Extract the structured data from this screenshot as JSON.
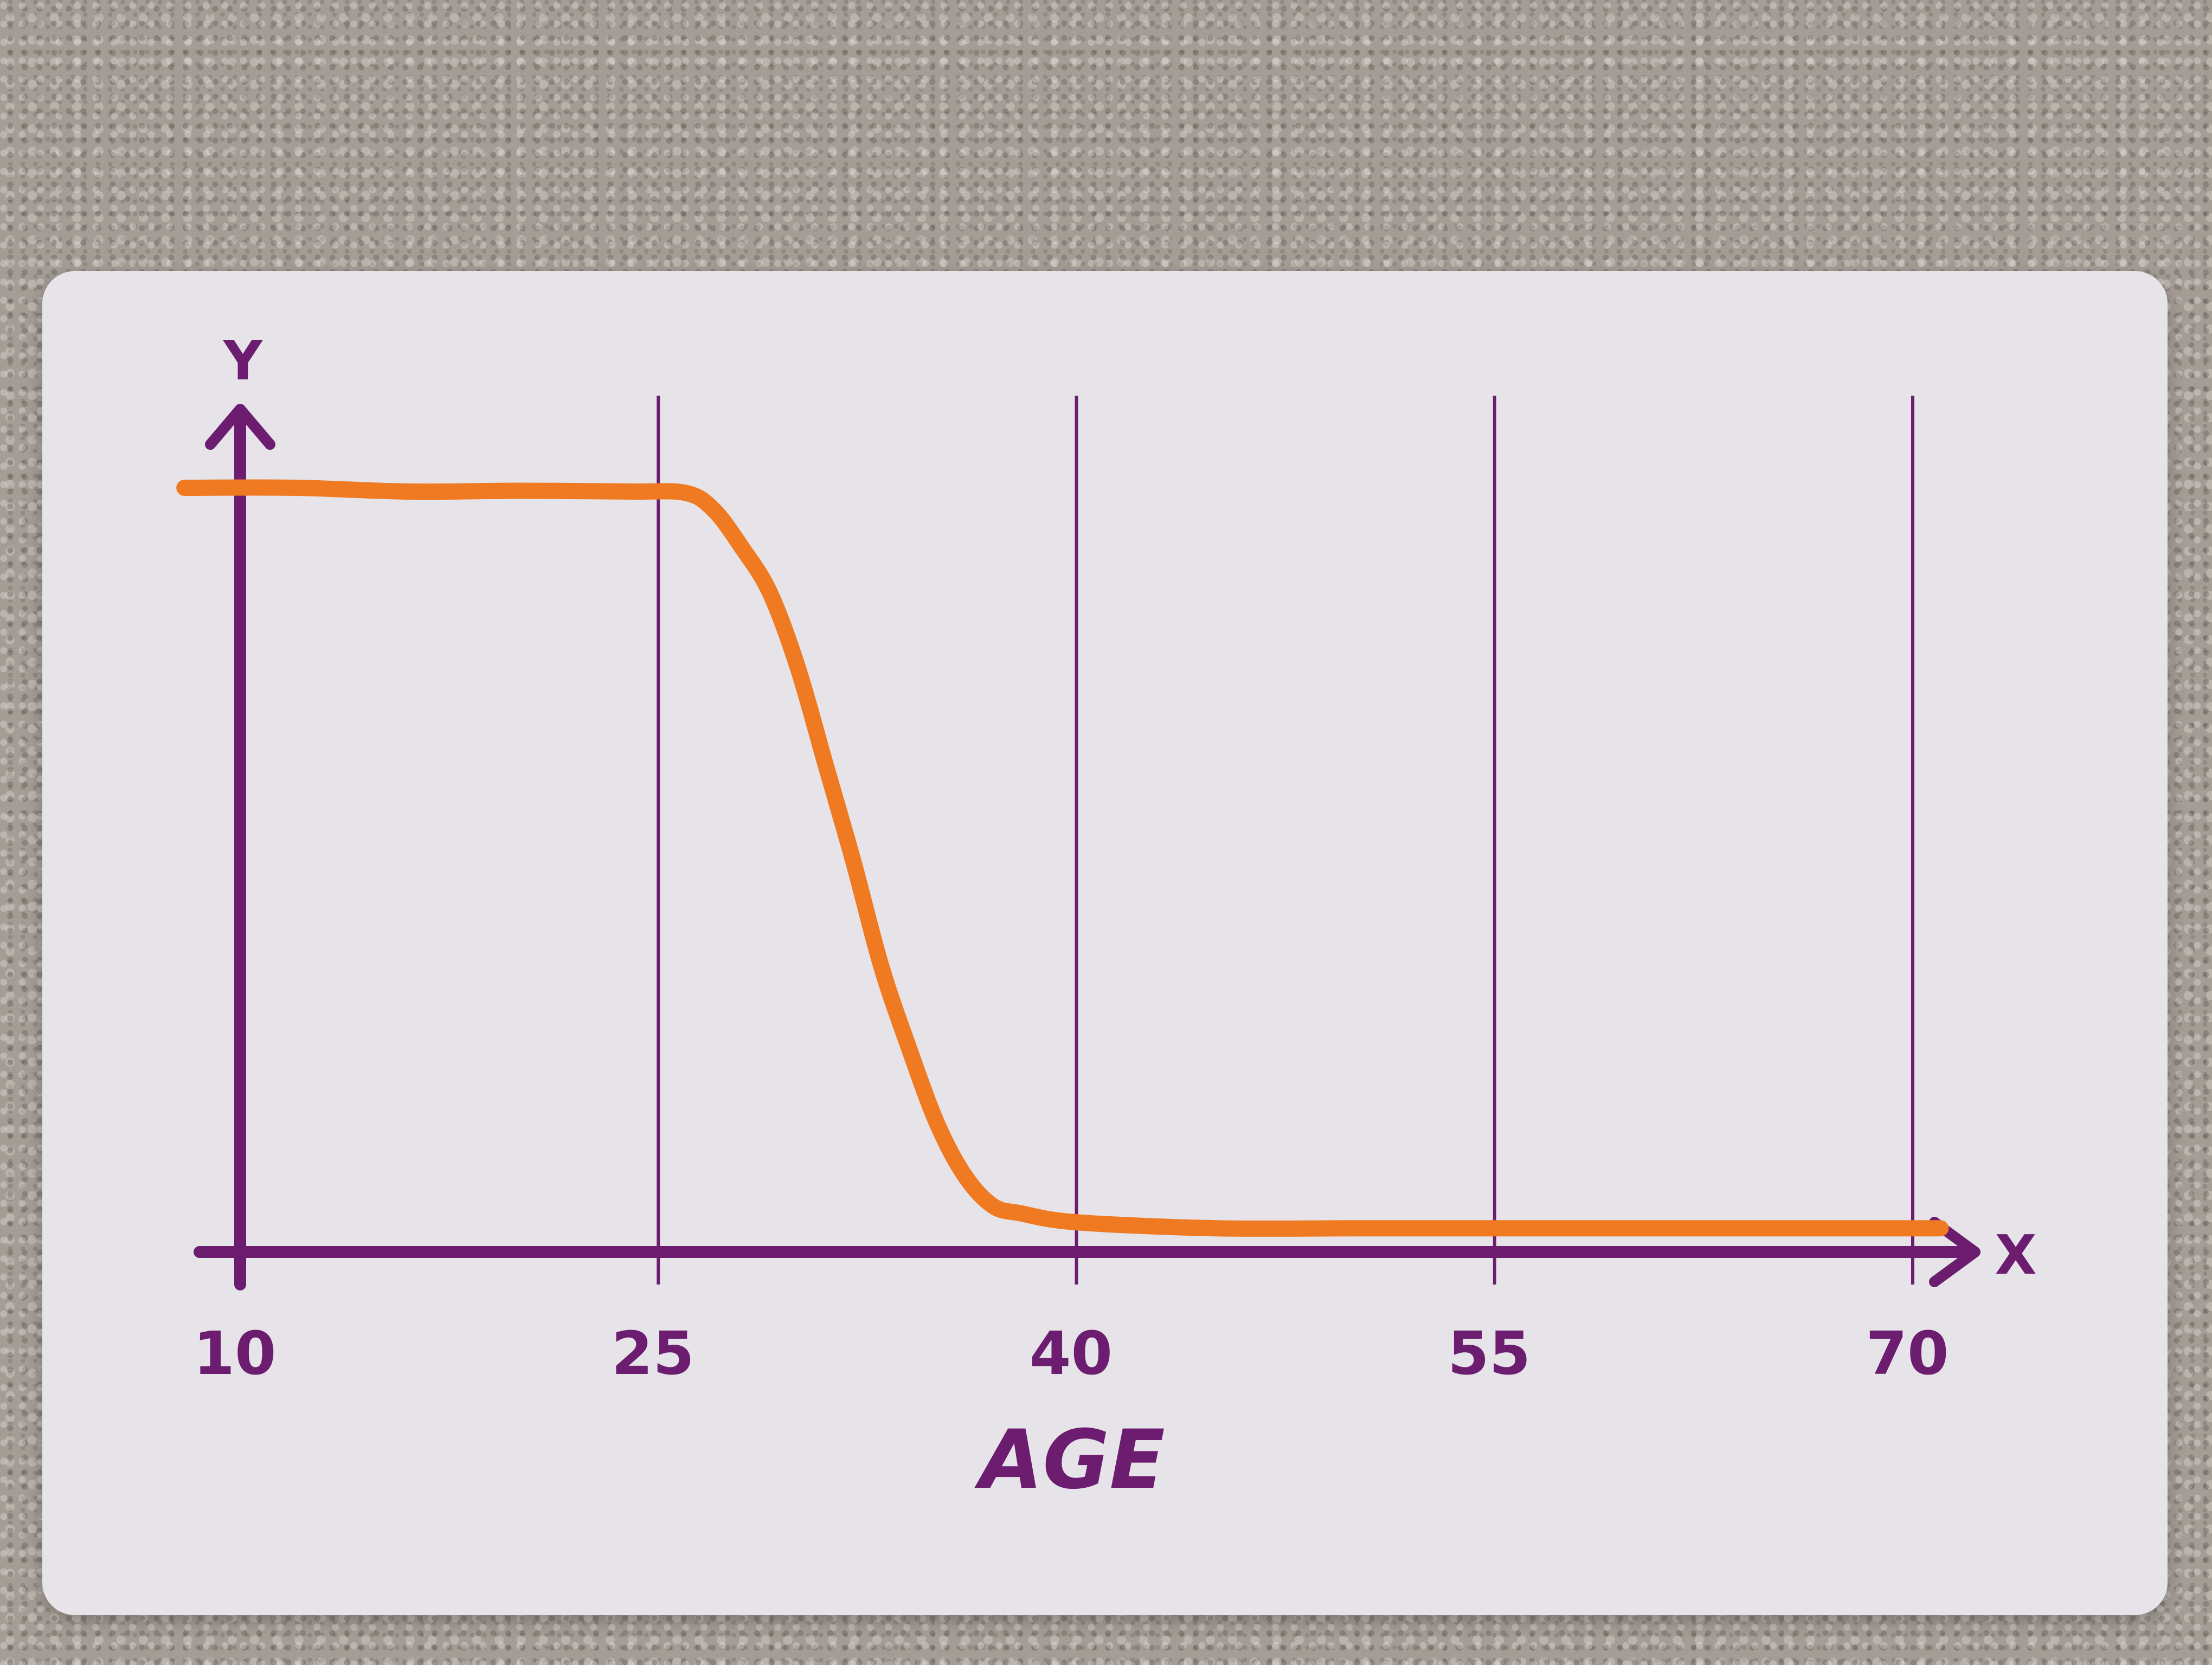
{
  "chart_data": {
    "type": "line",
    "xlabel": "AGE",
    "x_axis_letter": "X",
    "y_axis_letter": "Y",
    "xticks": [
      10,
      25,
      40,
      55,
      70
    ],
    "xlim": [
      10,
      70
    ],
    "ylim": [
      0,
      100
    ],
    "grid": "vertical lines at x ticks",
    "legend": "none",
    "series": [
      {
        "color": "#ef7a22",
        "x": [
          8,
          12,
          16,
          20,
          24,
          26,
          27,
          28,
          29,
          30,
          31,
          32,
          33,
          34,
          35,
          36,
          37,
          38,
          40,
          45,
          50,
          55,
          60,
          65,
          71
        ],
        "y": [
          100,
          100,
          99.5,
          99.6,
          99.5,
          99.3,
          97,
          92,
          86,
          76,
          63,
          50,
          36,
          25,
          15,
          8,
          4,
          3,
          1.8,
          1,
          1,
          1,
          1,
          1,
          1
        ]
      }
    ],
    "colors": {
      "axis": "#6c1d70",
      "line": "#ef7a22"
    }
  }
}
